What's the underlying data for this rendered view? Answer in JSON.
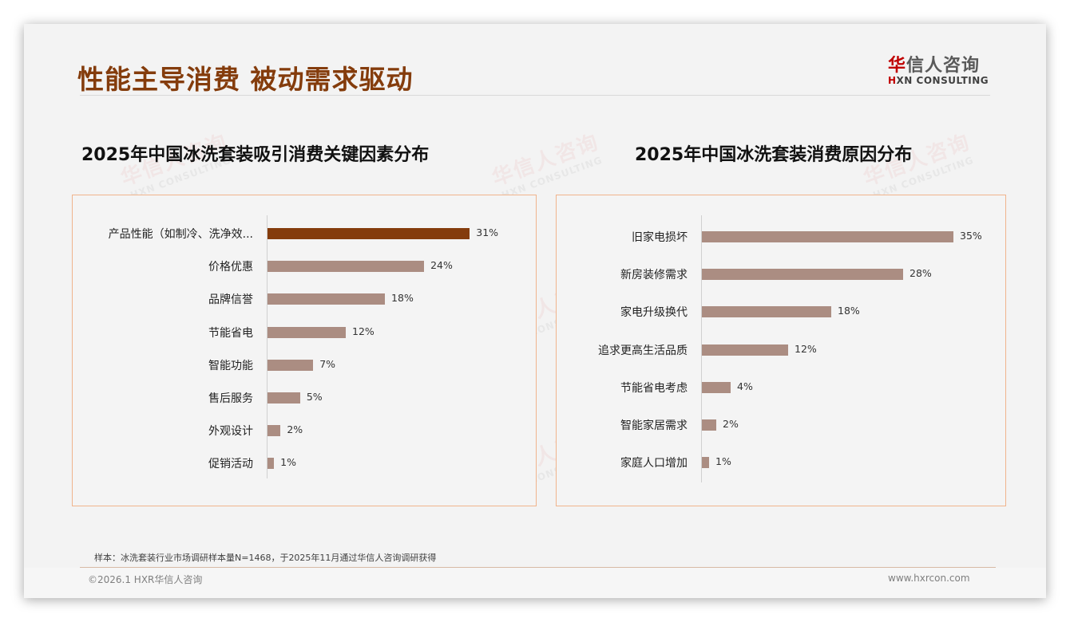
{
  "header": {
    "title": "性能主导消费 被动需求驱动",
    "logo_cn_accent": "华",
    "logo_cn_rest": "信人咨询",
    "logo_en_accent": "H",
    "logo_en_rest": "XN CONSULTING"
  },
  "watermark": {
    "cn": "华信人咨询",
    "en": "HXN CONSULTING"
  },
  "chart_data": [
    {
      "type": "bar",
      "orientation": "horizontal",
      "title": "2025年中国冰洗套装吸引消费关键因素分布",
      "categories": [
        "产品性能（如制冷、洗净效...",
        "价格优惠",
        "品牌信誉",
        "节能省电",
        "智能功能",
        "售后服务",
        "外观设计",
        "促销活动"
      ],
      "values": [
        31,
        24,
        18,
        12,
        7,
        5,
        2,
        1
      ],
      "labels": [
        "31%",
        "24%",
        "18%",
        "12%",
        "7%",
        "5%",
        "2%",
        "1%"
      ],
      "unit": "%",
      "highlight_index": 0,
      "colors": {
        "highlight": "#843c0c",
        "default": "#ab8d82"
      },
      "xlabel": "",
      "ylabel": "",
      "grid": false,
      "legend": "none"
    },
    {
      "type": "bar",
      "orientation": "horizontal",
      "title": "2025年中国冰洗套装消费原因分布",
      "categories": [
        "旧家电损坏",
        "新房装修需求",
        "家电升级换代",
        "追求更高生活品质",
        "节能省电考虑",
        "智能家居需求",
        "家庭人口增加"
      ],
      "values": [
        35,
        28,
        18,
        12,
        4,
        2,
        1
      ],
      "labels": [
        "35%",
        "28%",
        "18%",
        "12%",
        "4%",
        "2%",
        "1%"
      ],
      "unit": "%",
      "colors": {
        "default": "#ab8d82"
      },
      "xlabel": "",
      "ylabel": "",
      "grid": false,
      "legend": "none"
    }
  ],
  "footer": {
    "note": "样本：冰洗套装行业市场调研样本量N=1468，于2025年11月通过华信人咨询调研获得",
    "copyright": "©2026.1 HXR华信人咨询",
    "website": "www.hxrcon.com"
  }
}
